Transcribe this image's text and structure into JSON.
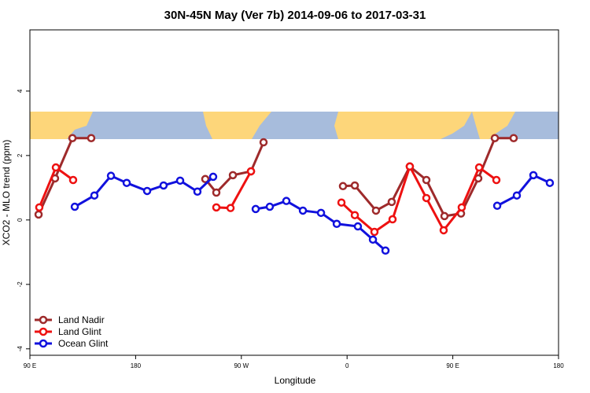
{
  "chart_data": {
    "type": "line",
    "title": "30N-45N May (Ver 7b)   2014-09-06 to 2017-03-31",
    "x_label": "Longitude",
    "y_label": "XCO2 - MLO trend (ppm)",
    "xlim": [
      90,
      540
    ],
    "ylim": [
      -4.2,
      5.9
    ],
    "xticks": [
      {
        "value": 90,
        "label": "90 E"
      },
      180,
      {
        "value": 270,
        "label": "90 W"
      },
      {
        "value": 360,
        "label": "0"
      },
      {
        "value": 450,
        "label": "90 E"
      },
      {
        "value": 540,
        "label": "180"
      }
    ],
    "yticks": [
      -4,
      -2,
      0,
      2,
      4
    ],
    "legend": "bottom-left",
    "series": [
      {
        "name": "Land Nadir",
        "color": "#9e2a2b",
        "x": [
          97.4,
          111.4,
          126.2,
          142.2,
          null,
          239.3,
          248.7,
          262.8,
          278.2,
          288.9,
          null,
          356.5,
          366.6,
          384.6,
          398.0,
          413.4,
          427.5,
          442.9,
          457.0,
          471.7,
          485.8,
          501.8
        ],
        "values": [
          0.17,
          1.29,
          2.54,
          2.54,
          null,
          1.27,
          0.85,
          1.39,
          1.51,
          2.41,
          null,
          1.05,
          1.07,
          0.29,
          0.56,
          1.66,
          1.24,
          0.12,
          0.2,
          1.29,
          2.54,
          2.54
        ]
      },
      {
        "name": "Land Glint",
        "color": "#ee1111",
        "x": [
          98.0,
          112.1,
          126.8,
          null,
          248.7,
          260.8,
          278.2,
          null,
          355.2,
          366.6,
          383.3,
          398.7,
          413.4,
          427.5,
          442.2,
          457.6,
          472.4,
          487.1
        ],
        "values": [
          0.39,
          1.63,
          1.24,
          null,
          0.39,
          0.37,
          1.51,
          null,
          0.54,
          0.15,
          -0.37,
          0.02,
          1.66,
          0.68,
          -0.32,
          0.39,
          1.63,
          1.24
        ]
      },
      {
        "name": "Ocean Glint",
        "color": "#1111dd",
        "x": [
          128.2,
          144.9,
          159.0,
          172.4,
          189.8,
          203.8,
          217.9,
          232.6,
          246.0,
          null,
          282.2,
          294.2,
          308.3,
          322.4,
          337.8,
          351.2,
          369.2,
          382.0,
          392.7,
          null,
          487.8,
          504.5,
          518.6,
          532.6
        ],
        "values": [
          0.41,
          0.76,
          1.37,
          1.15,
          0.9,
          1.07,
          1.22,
          0.88,
          1.34,
          null,
          0.34,
          0.41,
          0.59,
          0.29,
          0.22,
          -0.12,
          -0.2,
          -0.61,
          -0.95,
          null,
          0.44,
          0.76,
          1.39,
          1.15
        ]
      }
    ]
  }
}
